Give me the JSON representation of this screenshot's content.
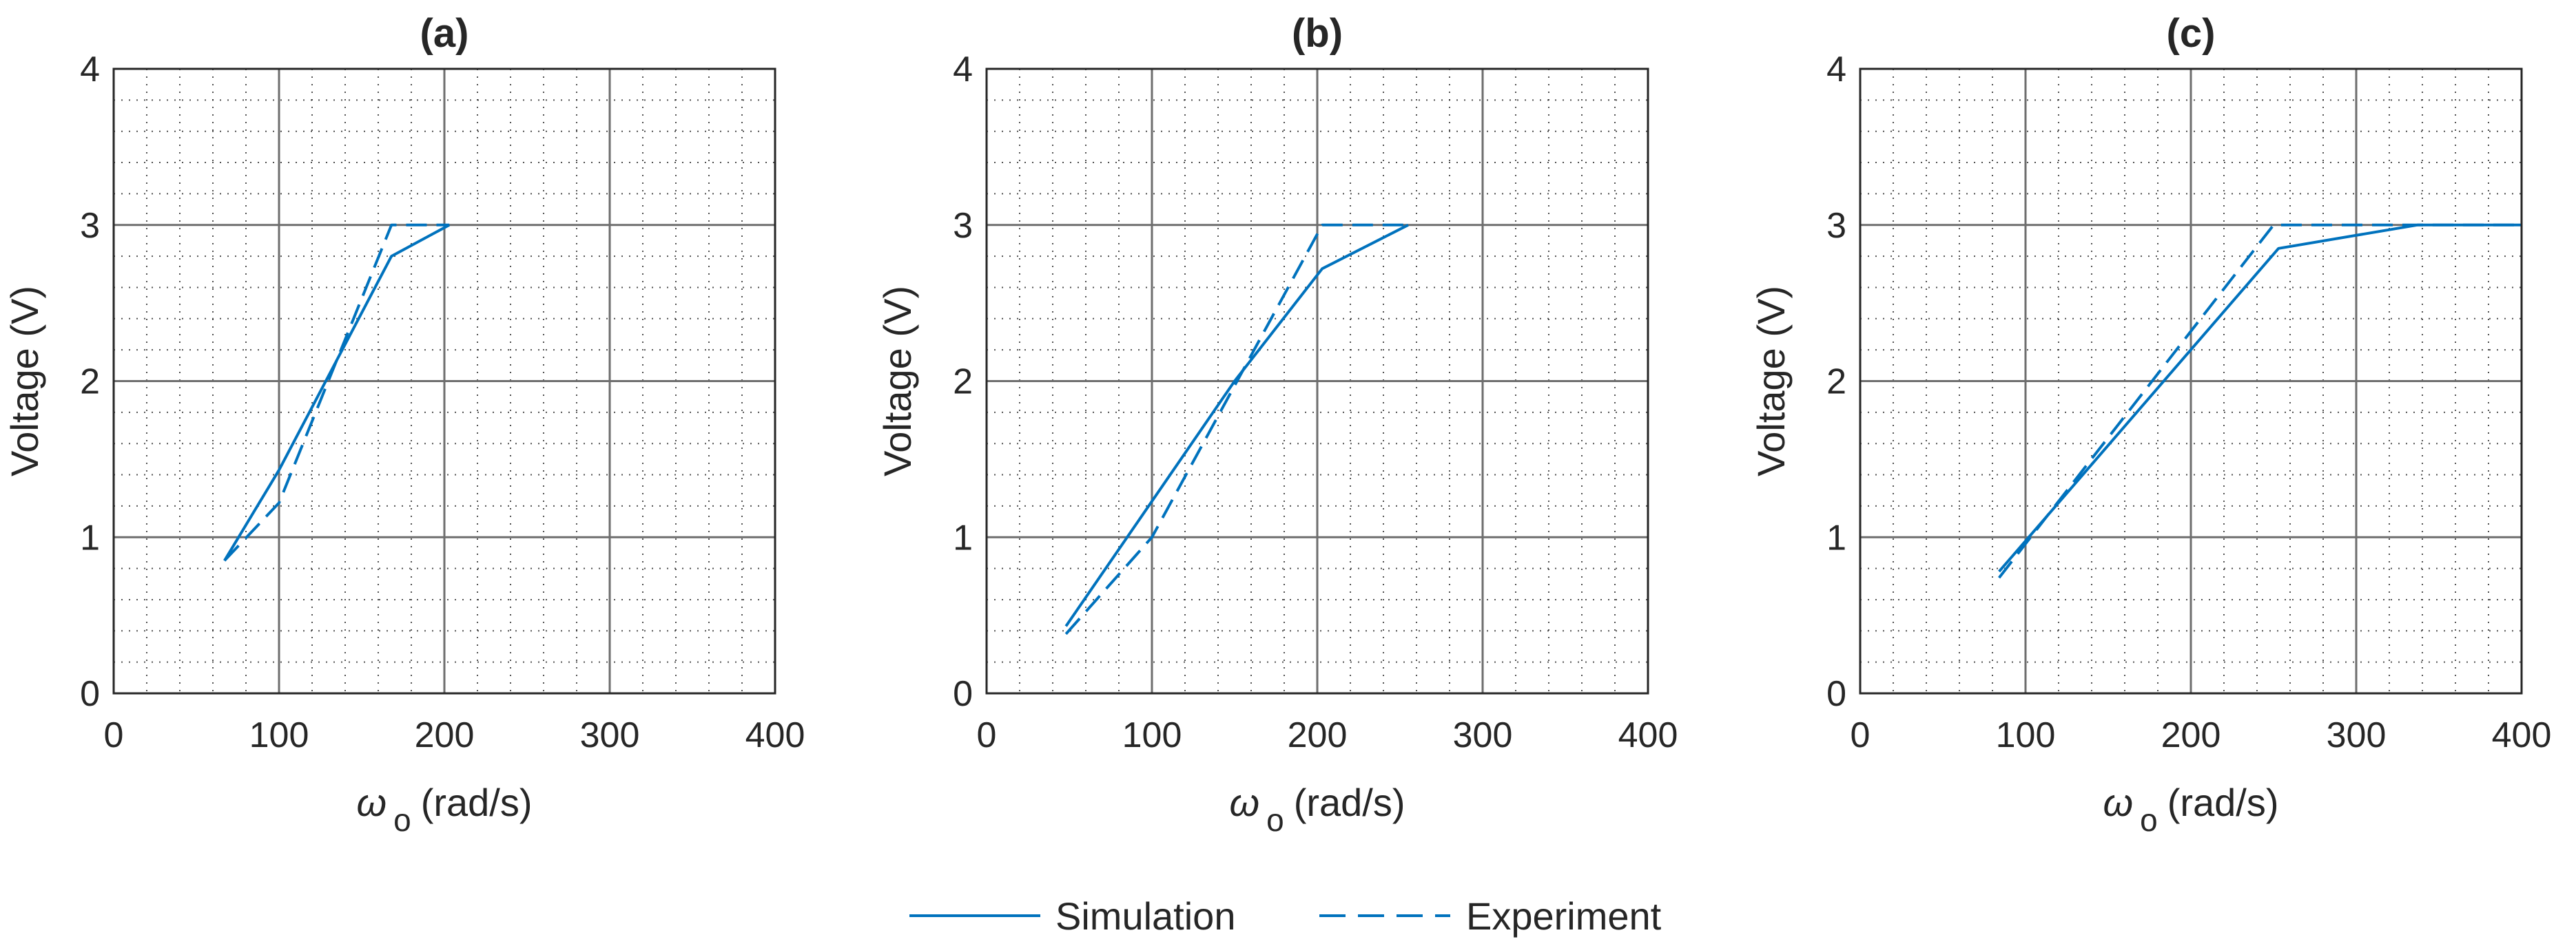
{
  "legend": {
    "simulation_label": "Simulation",
    "experiment_label": "Experiment"
  },
  "colors": {
    "series": "#0072BD",
    "axis": "#262626",
    "major_grid": "#6e6e6e",
    "minor_grid": "#262626"
  },
  "chart_data": [
    {
      "type": "line",
      "title": "(a)",
      "xlabel_symbol": "ω",
      "xlabel_sub": "o",
      "xlabel_unit": "(rad/s)",
      "ylabel": "Voltage (V)",
      "xlim": [
        0,
        400
      ],
      "ylim": [
        0,
        4
      ],
      "xticks": [
        0,
        100,
        200,
        300,
        400
      ],
      "yticks": [
        0,
        1,
        2,
        3,
        4
      ],
      "grid": "major and minor",
      "series": [
        {
          "name": "Simulation",
          "style": "solid",
          "x": [
            67,
            100,
            168,
            203
          ],
          "y": [
            0.85,
            1.43,
            2.8,
            3.0
          ]
        },
        {
          "name": "Experiment",
          "style": "dashed",
          "x": [
            67,
            100,
            168,
            203
          ],
          "y": [
            0.85,
            1.22,
            3.0,
            3.0
          ]
        }
      ]
    },
    {
      "type": "line",
      "title": "(b)",
      "xlabel_symbol": "ω",
      "xlabel_sub": "o",
      "xlabel_unit": "(rad/s)",
      "ylabel": "Voltage (V)",
      "xlim": [
        0,
        400
      ],
      "ylim": [
        0,
        4
      ],
      "xticks": [
        0,
        100,
        200,
        300,
        400
      ],
      "yticks": [
        0,
        1,
        2,
        3,
        4
      ],
      "grid": "major and minor",
      "series": [
        {
          "name": "Simulation",
          "style": "solid",
          "x": [
            48,
            150,
            203,
            255
          ],
          "y": [
            0.43,
            2.0,
            2.72,
            3.0
          ]
        },
        {
          "name": "Experiment",
          "style": "dashed",
          "x": [
            48,
            100,
            203,
            255
          ],
          "y": [
            0.38,
            1.0,
            3.0,
            3.0
          ]
        }
      ]
    },
    {
      "type": "line",
      "title": "(c)",
      "xlabel_symbol": "ω",
      "xlabel_sub": "o",
      "xlabel_unit": "(rad/s)",
      "ylabel": "Voltage (V)",
      "xlim": [
        0,
        400
      ],
      "ylim": [
        0,
        4
      ],
      "xticks": [
        0,
        100,
        200,
        300,
        400
      ],
      "yticks": [
        0,
        1,
        2,
        3,
        4
      ],
      "grid": "major and minor",
      "series": [
        {
          "name": "Simulation",
          "style": "solid",
          "x": [
            84,
            253,
            337,
            400
          ],
          "y": [
            0.78,
            2.85,
            3.0,
            3.0
          ]
        },
        {
          "name": "Experiment",
          "style": "dashed",
          "x": [
            84,
            250,
            400
          ],
          "y": [
            0.74,
            3.0,
            3.0
          ]
        }
      ]
    }
  ]
}
